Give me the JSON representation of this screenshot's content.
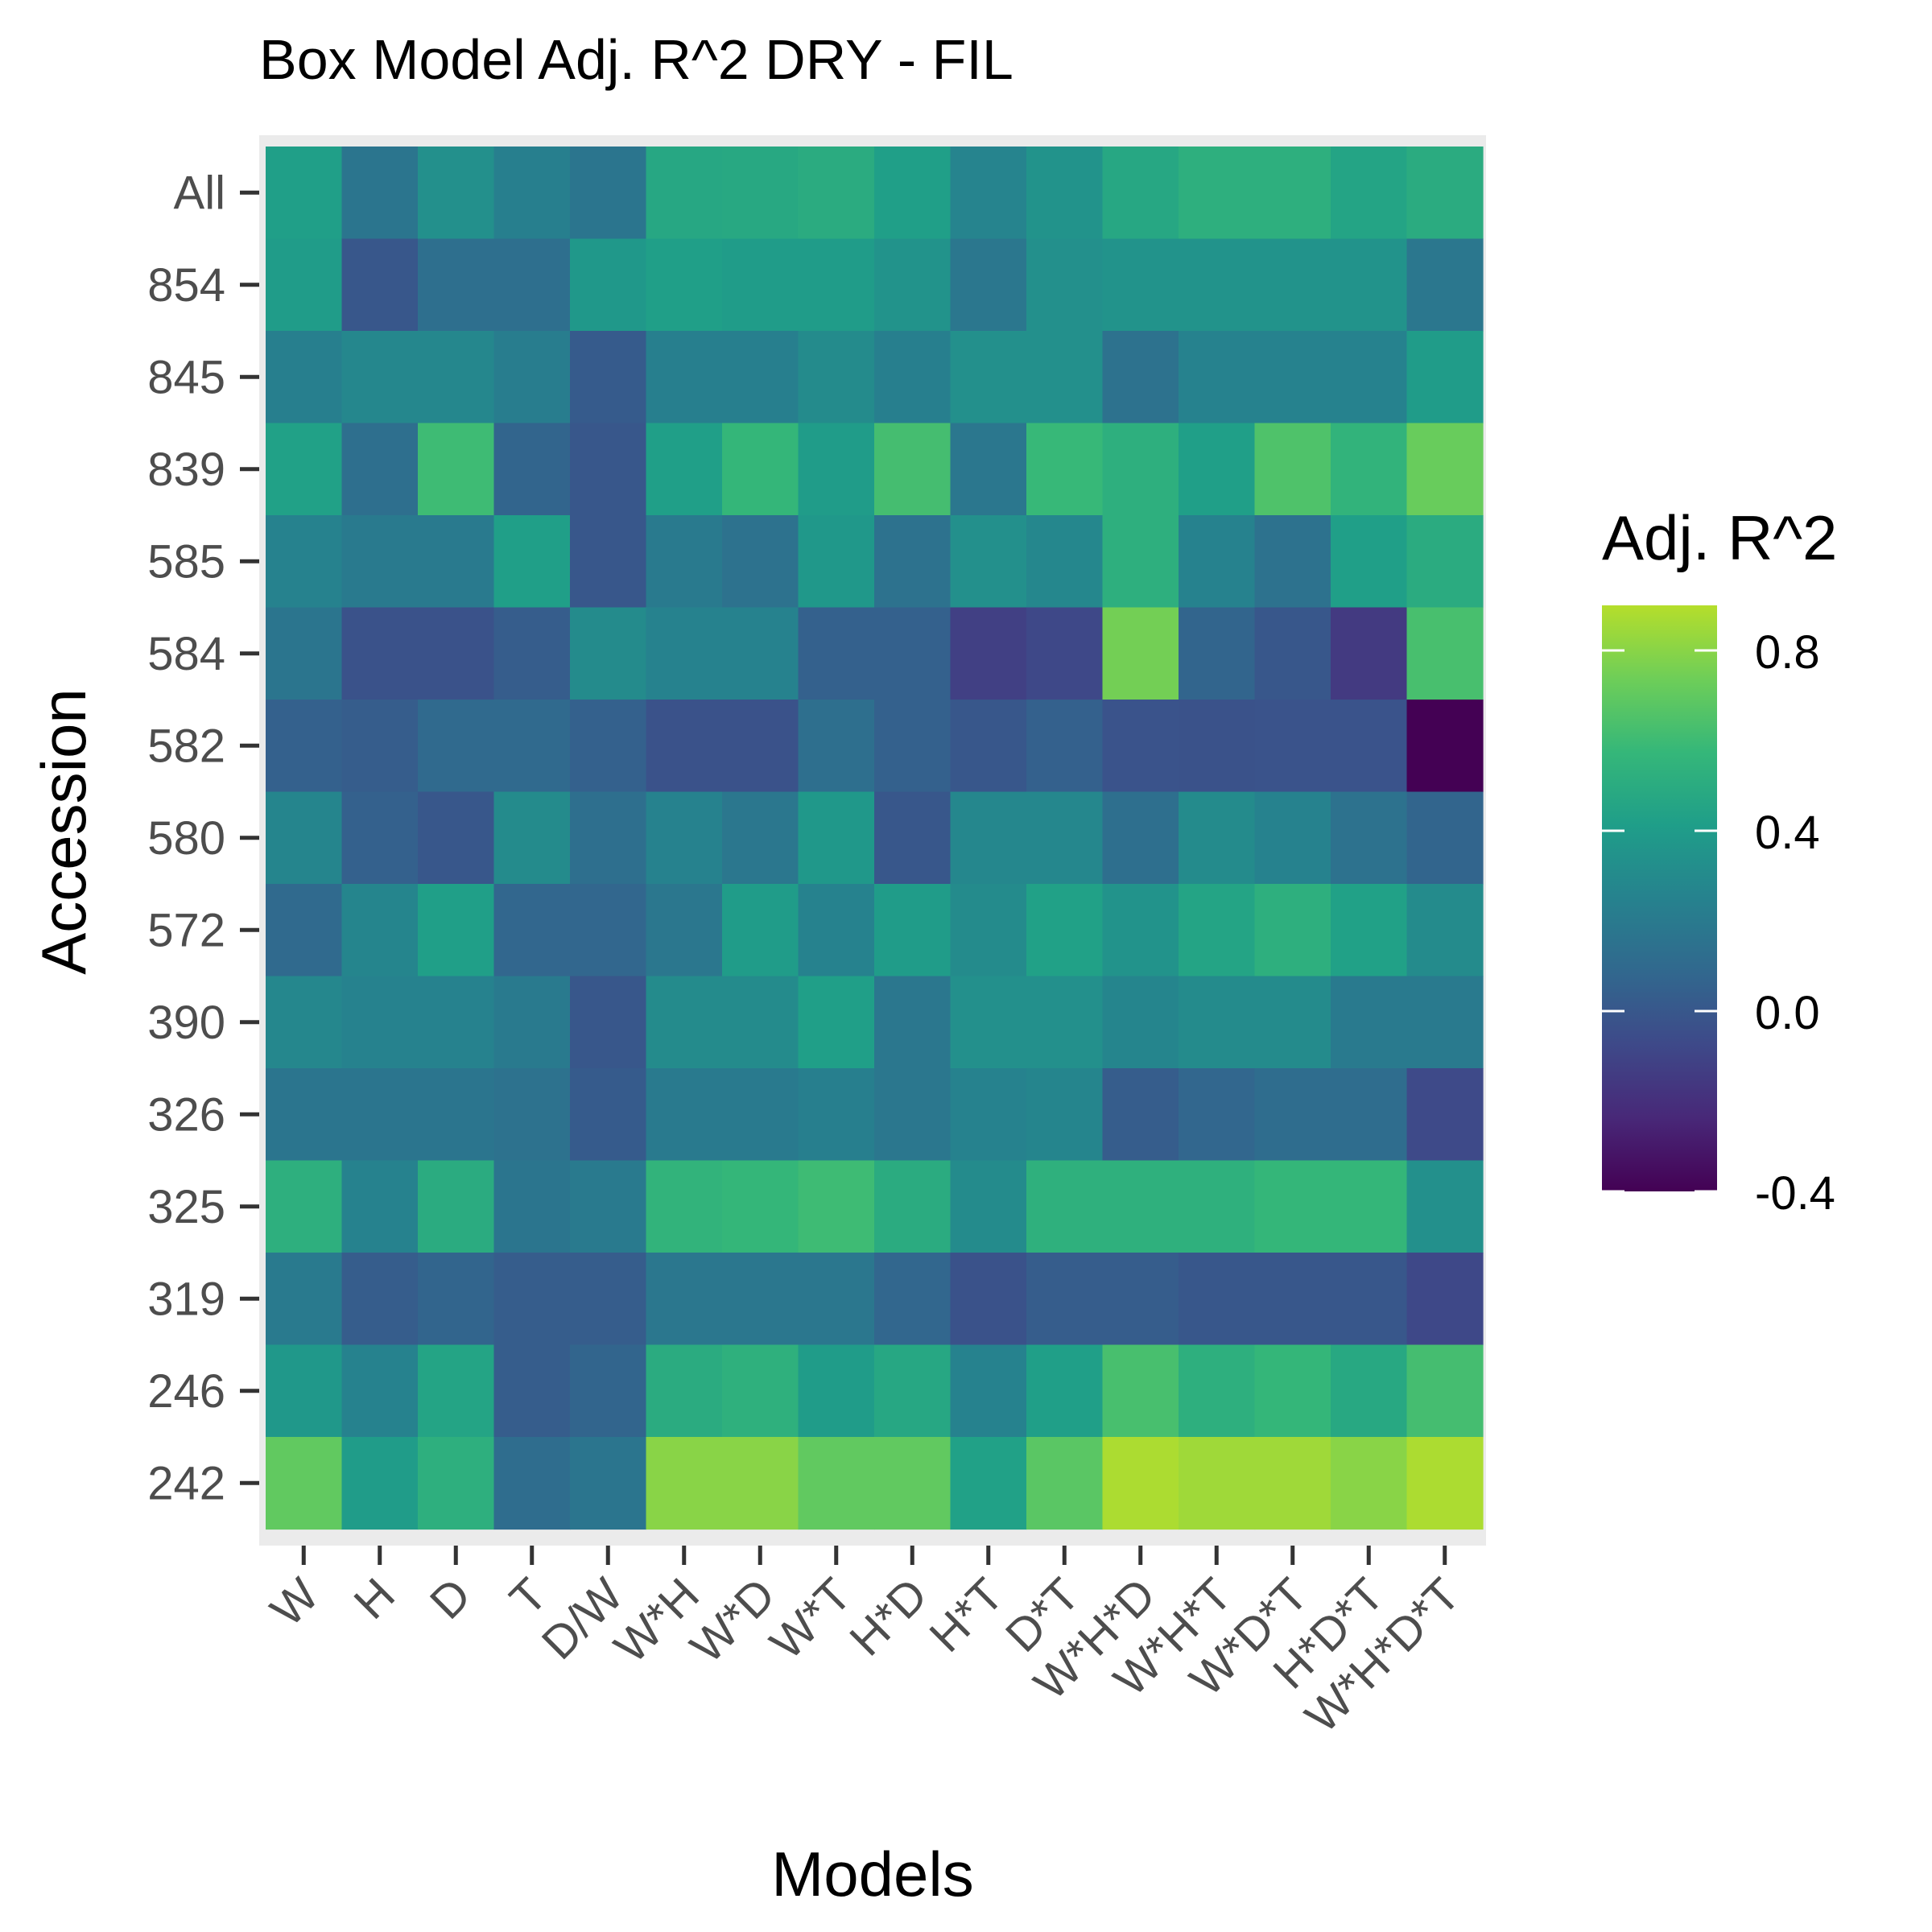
{
  "chart_data": {
    "type": "heatmap",
    "title": "Box Model Adj. R^2 DRY - FIL",
    "xlabel": "Models",
    "ylabel": "Accession",
    "legend_title": "Adj. R^2",
    "legend_placement": "right",
    "color_scale": "viridis",
    "color_range": [
      -0.4,
      0.9
    ],
    "legend_ticks": [
      0.8,
      0.4,
      0.0,
      -0.4
    ],
    "legend_tick_labels": [
      "0.8",
      "0.4",
      "0.0",
      "-0.4"
    ],
    "x_categories": [
      "W",
      "H",
      "D",
      "T",
      "D/W",
      "W*H",
      "W*D",
      "W*T",
      "H*D",
      "H*T",
      "D*T",
      "W*H*D",
      "W*H*T",
      "W*D*T",
      "H*D*T",
      "W*H*D*T"
    ],
    "y_categories": [
      "All",
      "854",
      "845",
      "839",
      "585",
      "584",
      "582",
      "580",
      "572",
      "390",
      "326",
      "325",
      "319",
      "246",
      "242"
    ],
    "values": [
      [
        0.42,
        0.17,
        0.33,
        0.23,
        0.17,
        0.47,
        0.48,
        0.5,
        0.42,
        0.26,
        0.35,
        0.47,
        0.52,
        0.52,
        0.45,
        0.5
      ],
      [
        0.4,
        0.0,
        0.13,
        0.13,
        0.38,
        0.42,
        0.4,
        0.4,
        0.35,
        0.18,
        0.33,
        0.35,
        0.35,
        0.35,
        0.35,
        0.18
      ],
      [
        0.23,
        0.28,
        0.28,
        0.22,
        0.02,
        0.23,
        0.23,
        0.3,
        0.23,
        0.33,
        0.33,
        0.15,
        0.25,
        0.25,
        0.25,
        0.4
      ],
      [
        0.43,
        0.13,
        0.6,
        0.07,
        0.0,
        0.42,
        0.57,
        0.4,
        0.62,
        0.18,
        0.58,
        0.52,
        0.42,
        0.65,
        0.55,
        0.72
      ],
      [
        0.25,
        0.2,
        0.2,
        0.42,
        0.0,
        0.2,
        0.15,
        0.38,
        0.15,
        0.33,
        0.28,
        0.52,
        0.25,
        0.15,
        0.42,
        0.5
      ],
      [
        0.17,
        -0.03,
        -0.03,
        0.03,
        0.3,
        0.25,
        0.25,
        0.05,
        0.05,
        -0.12,
        -0.08,
        0.75,
        0.07,
        0.0,
        -0.15,
        0.63
      ],
      [
        0.05,
        0.03,
        0.1,
        0.1,
        0.05,
        -0.03,
        -0.03,
        0.13,
        0.05,
        0.0,
        0.05,
        -0.02,
        -0.03,
        -0.02,
        -0.02,
        -0.42
      ],
      [
        0.27,
        0.05,
        0.0,
        0.3,
        0.13,
        0.25,
        0.18,
        0.38,
        0.0,
        0.28,
        0.28,
        0.13,
        0.3,
        0.25,
        0.15,
        0.07
      ],
      [
        0.1,
        0.27,
        0.42,
        0.08,
        0.08,
        0.18,
        0.4,
        0.25,
        0.4,
        0.3,
        0.43,
        0.35,
        0.45,
        0.52,
        0.43,
        0.3
      ],
      [
        0.28,
        0.25,
        0.25,
        0.2,
        0.0,
        0.3,
        0.3,
        0.42,
        0.18,
        0.33,
        0.33,
        0.27,
        0.3,
        0.3,
        0.2,
        0.2
      ],
      [
        0.17,
        0.17,
        0.17,
        0.15,
        0.02,
        0.2,
        0.2,
        0.23,
        0.18,
        0.25,
        0.27,
        0.03,
        0.08,
        0.12,
        0.12,
        -0.07
      ],
      [
        0.52,
        0.25,
        0.5,
        0.17,
        0.2,
        0.55,
        0.57,
        0.6,
        0.5,
        0.3,
        0.53,
        0.53,
        0.53,
        0.57,
        0.57,
        0.33
      ],
      [
        0.2,
        0.03,
        0.07,
        0.03,
        0.03,
        0.18,
        0.18,
        0.18,
        0.08,
        -0.03,
        0.03,
        0.03,
        0.0,
        0.0,
        0.0,
        -0.08
      ],
      [
        0.38,
        0.25,
        0.45,
        0.03,
        0.07,
        0.5,
        0.53,
        0.4,
        0.47,
        0.25,
        0.42,
        0.63,
        0.52,
        0.57,
        0.48,
        0.62
      ],
      [
        0.7,
        0.4,
        0.52,
        0.12,
        0.17,
        0.8,
        0.8,
        0.7,
        0.7,
        0.43,
        0.68,
        0.88,
        0.85,
        0.85,
        0.8,
        0.88
      ]
    ]
  }
}
